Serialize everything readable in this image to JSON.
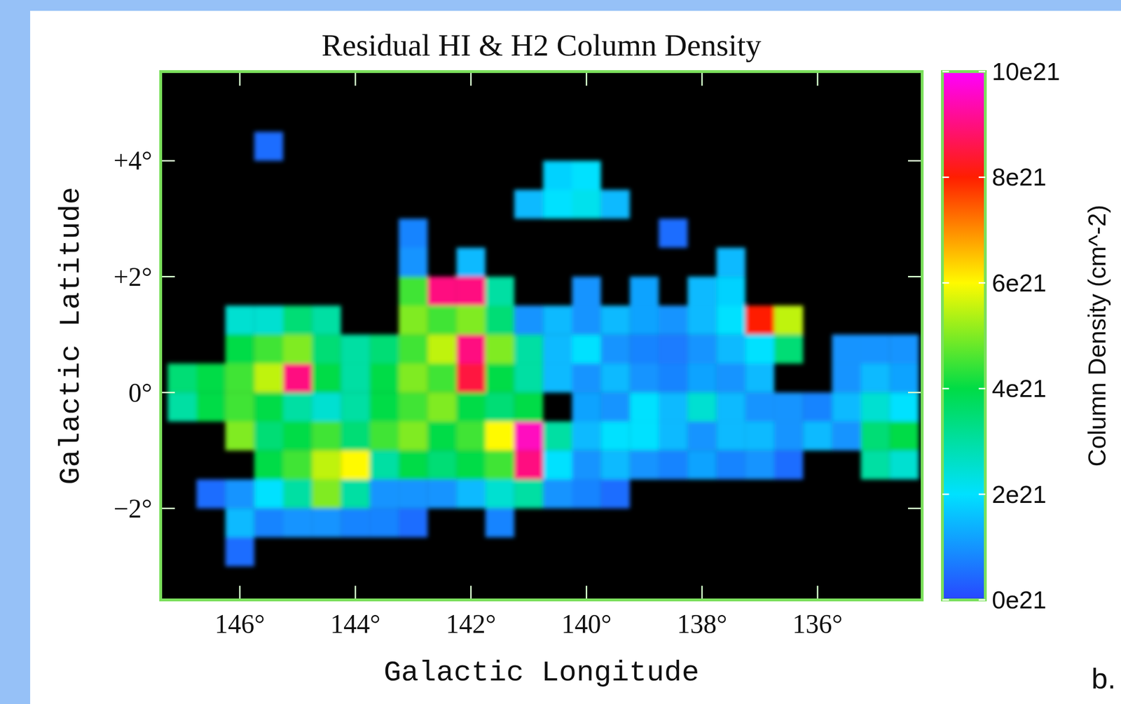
{
  "chart_data": {
    "type": "heatmap",
    "title": "Residual HI & H2 Column Density",
    "x_label": "Galactic Longitude",
    "y_label": "Galactic Latitude",
    "panel_label": "b.",
    "xlim": [
      147.37,
      134.19
    ],
    "ylim": [
      -3.58,
      5.54
    ],
    "xticks": [
      {
        "value": 146,
        "label": "146°"
      },
      {
        "value": 144,
        "label": "144°"
      },
      {
        "value": 142,
        "label": "142°"
      },
      {
        "value": 140,
        "label": "140°"
      },
      {
        "value": 138,
        "label": "138°"
      },
      {
        "value": 136,
        "label": "136°"
      }
    ],
    "yticks": [
      {
        "value": 4,
        "label": "+4°"
      },
      {
        "value": 2,
        "label": "+2°"
      },
      {
        "value": 0,
        "label": "0°"
      },
      {
        "value": -2,
        "label": "−2°"
      }
    ],
    "x": [
      147.0,
      146.5,
      146.0,
      145.5,
      145.0,
      144.5,
      144.0,
      143.5,
      143.0,
      142.5,
      142.0,
      141.5,
      141.0,
      140.5,
      140.0,
      139.5,
      139.0,
      138.5,
      138.0,
      137.5,
      137.0,
      136.5,
      136.0,
      135.5,
      135.0,
      134.5
    ],
    "y": [
      5.25,
      4.75,
      4.25,
      3.75,
      3.25,
      2.75,
      2.25,
      1.75,
      1.25,
      0.75,
      0.25,
      -0.25,
      -0.75,
      -1.25,
      -1.75,
      -2.25,
      -2.75,
      -3.25
    ],
    "values": [
      [
        null,
        null,
        null,
        null,
        null,
        null,
        null,
        null,
        null,
        null,
        null,
        null,
        null,
        null,
        null,
        null,
        null,
        null,
        null,
        null,
        null,
        null,
        null,
        null,
        null,
        null
      ],
      [
        null,
        null,
        null,
        null,
        null,
        null,
        null,
        null,
        null,
        null,
        null,
        null,
        null,
        null,
        null,
        null,
        null,
        null,
        null,
        null,
        null,
        null,
        null,
        null,
        null,
        null
      ],
      [
        null,
        null,
        null,
        5e+20,
        null,
        null,
        null,
        null,
        null,
        null,
        null,
        null,
        null,
        null,
        null,
        null,
        null,
        null,
        null,
        null,
        null,
        null,
        null,
        null,
        null,
        null
      ],
      [
        null,
        null,
        null,
        null,
        null,
        null,
        null,
        null,
        null,
        null,
        null,
        null,
        null,
        1.8e+21,
        2e+21,
        null,
        null,
        null,
        null,
        null,
        null,
        null,
        null,
        null,
        null,
        null
      ],
      [
        null,
        null,
        null,
        null,
        null,
        null,
        null,
        null,
        null,
        null,
        null,
        null,
        1.5e+21,
        2e+21,
        2.2e+21,
        1.5e+21,
        null,
        null,
        null,
        null,
        null,
        null,
        null,
        null,
        null,
        null
      ],
      [
        null,
        null,
        null,
        null,
        null,
        null,
        null,
        null,
        8e+20,
        null,
        null,
        null,
        null,
        null,
        null,
        null,
        null,
        5e+20,
        null,
        null,
        null,
        null,
        null,
        null,
        null,
        null
      ],
      [
        null,
        null,
        null,
        null,
        null,
        null,
        null,
        null,
        1e+21,
        null,
        1.5e+21,
        null,
        null,
        null,
        null,
        null,
        null,
        null,
        null,
        1.5e+21,
        null,
        null,
        null,
        null,
        null,
        null
      ],
      [
        null,
        null,
        null,
        null,
        null,
        null,
        null,
        null,
        4.5e+21,
        9e+21,
        9e+21,
        3e+21,
        null,
        null,
        1e+21,
        null,
        1.2e+21,
        null,
        1.5e+21,
        1.8e+21,
        null,
        null,
        null,
        null,
        null,
        null
      ],
      [
        null,
        null,
        2.5e+21,
        2.5e+21,
        3.5e+21,
        3e+21,
        null,
        null,
        5e+21,
        4.5e+21,
        5e+21,
        3.5e+21,
        1e+21,
        1.5e+21,
        1e+21,
        1.5e+21,
        1.2e+21,
        1e+21,
        1.5e+21,
        2e+21,
        8e+21,
        5.5e+21,
        null,
        null,
        null,
        null
      ],
      [
        null,
        null,
        4e+21,
        4.5e+21,
        5e+21,
        3.5e+21,
        3e+21,
        3.5e+21,
        4.5e+21,
        5.5e+21,
        9e+21,
        5e+21,
        3e+21,
        1.5e+21,
        2e+21,
        1e+21,
        8e+20,
        7e+20,
        1e+21,
        1.5e+21,
        2e+21,
        3.5e+21,
        null,
        1e+21,
        1e+21,
        1e+21
      ],
      [
        3.5e+21,
        4e+21,
        4.5e+21,
        5.5e+21,
        9e+21,
        4e+21,
        3e+21,
        4e+21,
        5e+21,
        4.5e+21,
        8.5e+21,
        4e+21,
        3e+21,
        1.5e+21,
        1e+21,
        1.5e+21,
        1e+21,
        8e+20,
        1.2e+21,
        1e+21,
        1.5e+21,
        null,
        null,
        1e+21,
        1.5e+21,
        1.2e+21
      ],
      [
        3e+21,
        4e+21,
        4.5e+21,
        4e+21,
        3e+21,
        2.5e+21,
        3e+21,
        4e+21,
        4.5e+21,
        5e+21,
        4e+21,
        3.5e+21,
        4e+21,
        null,
        1.2e+21,
        1e+21,
        2e+21,
        1.5e+21,
        2.5e+21,
        1.5e+21,
        1e+21,
        1e+21,
        8e+20,
        1.5e+21,
        2.5e+21,
        2e+21
      ],
      [
        null,
        null,
        5e+21,
        3.5e+21,
        4e+21,
        4.5e+21,
        3.5e+21,
        4.5e+21,
        5e+21,
        4e+21,
        4.5e+21,
        6e+21,
        9.5e+21,
        3e+21,
        1.5e+21,
        2e+21,
        2e+21,
        1.5e+21,
        1e+21,
        1.5e+21,
        1.5e+21,
        1e+21,
        1.5e+21,
        1e+21,
        3.5e+21,
        4e+21
      ],
      [
        null,
        null,
        null,
        4e+21,
        4.5e+21,
        5.5e+21,
        6e+21,
        3e+21,
        4e+21,
        3.5e+21,
        4e+21,
        4.5e+21,
        9e+21,
        2e+21,
        1e+21,
        1.5e+21,
        1e+21,
        8e+20,
        1.2e+21,
        8e+20,
        1e+21,
        5e+20,
        null,
        null,
        3e+21,
        2.5e+21
      ],
      [
        null,
        5e+20,
        1e+21,
        2e+21,
        3e+21,
        5e+21,
        3e+21,
        1e+21,
        1e+21,
        1e+21,
        1.5e+21,
        2.5e+21,
        3e+21,
        1e+21,
        8e+20,
        5e+20,
        null,
        null,
        null,
        null,
        null,
        null,
        null,
        null,
        null,
        null
      ],
      [
        null,
        null,
        1.5e+21,
        8e+20,
        1e+21,
        1e+21,
        8e+20,
        8e+20,
        5e+20,
        null,
        null,
        8e+20,
        null,
        null,
        null,
        null,
        null,
        null,
        null,
        null,
        null,
        null,
        null,
        null,
        null,
        null
      ],
      [
        null,
        null,
        5e+20,
        null,
        null,
        null,
        null,
        null,
        null,
        null,
        null,
        null,
        null,
        null,
        null,
        null,
        null,
        null,
        null,
        null,
        null,
        null,
        null,
        null,
        null,
        null
      ],
      [
        null,
        null,
        null,
        null,
        null,
        null,
        null,
        null,
        null,
        null,
        null,
        null,
        null,
        null,
        null,
        null,
        null,
        null,
        null,
        null,
        null,
        null,
        null,
        null,
        null,
        null
      ]
    ],
    "colorbar": {
      "label": "Column Density (cm^-2)",
      "range": [
        0,
        1e+22
      ],
      "ticks": [
        {
          "value": 0,
          "label": "0e21"
        },
        {
          "value": 2e+21,
          "label": "2e21"
        },
        {
          "value": 4e+21,
          "label": "4e21"
        },
        {
          "value": 6e+21,
          "label": "6e21"
        },
        {
          "value": 8e+21,
          "label": "8e21"
        },
        {
          "value": 1e+22,
          "label": "10e21"
        }
      ]
    }
  }
}
